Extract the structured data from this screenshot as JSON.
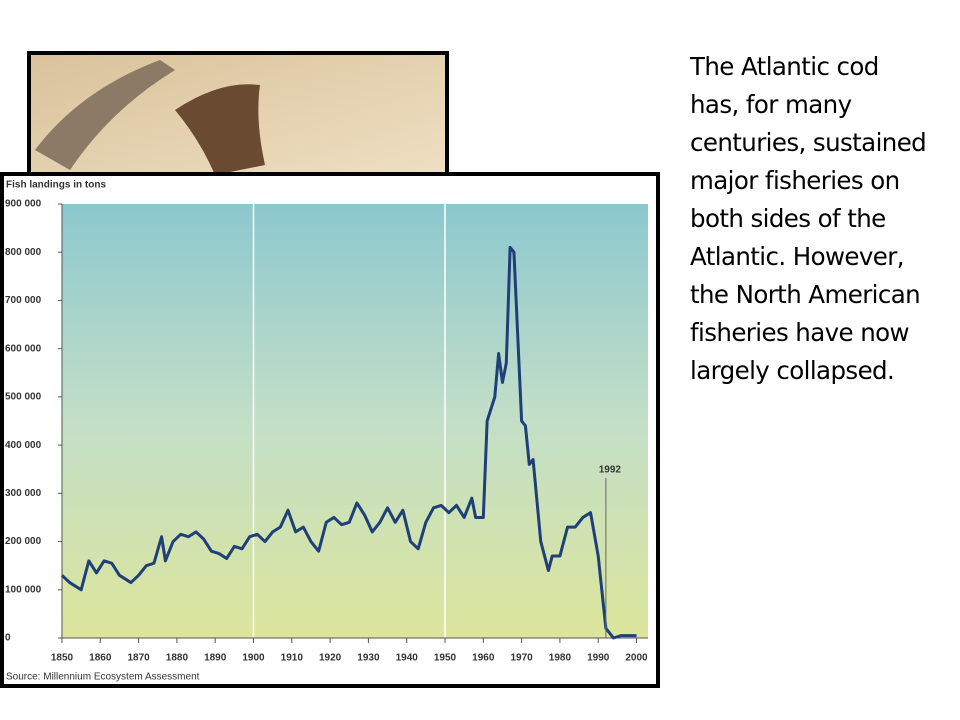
{
  "chart_data": {
    "type": "line",
    "title": "Fish landings in tons",
    "source": "Source: Millennium Ecosystem Assessment",
    "annotation": {
      "x": 1992,
      "label": "1992"
    },
    "x": [
      1850,
      1852,
      1855,
      1857,
      1859,
      1861,
      1863,
      1865,
      1868,
      1870,
      1872,
      1874,
      1876,
      1877,
      1879,
      1881,
      1883,
      1885,
      1887,
      1889,
      1891,
      1893,
      1895,
      1897,
      1899,
      1901,
      1903,
      1905,
      1907,
      1909,
      1911,
      1913,
      1915,
      1917,
      1919,
      1921,
      1923,
      1925,
      1927,
      1929,
      1931,
      1933,
      1935,
      1937,
      1939,
      1941,
      1943,
      1945,
      1947,
      1949,
      1951,
      1953,
      1955,
      1957,
      1958,
      1960,
      1961,
      1963,
      1964,
      1965,
      1966,
      1967,
      1968,
      1970,
      1971,
      1972,
      1973,
      1975,
      1977,
      1978,
      1980,
      1982,
      1984,
      1986,
      1988,
      1990,
      1992,
      1994,
      1996,
      2000
    ],
    "series": [
      {
        "name": "Fish landings",
        "color": "#1f3f78",
        "values": [
          130000,
          115000,
          100000,
          160000,
          135000,
          160000,
          155000,
          130000,
          115000,
          130000,
          150000,
          155000,
          210000,
          160000,
          200000,
          215000,
          210000,
          220000,
          205000,
          180000,
          175000,
          165000,
          190000,
          185000,
          210000,
          215000,
          200000,
          220000,
          230000,
          265000,
          220000,
          230000,
          200000,
          180000,
          240000,
          250000,
          235000,
          240000,
          280000,
          255000,
          220000,
          240000,
          270000,
          240000,
          265000,
          200000,
          185000,
          240000,
          270000,
          275000,
          260000,
          275000,
          250000,
          290000,
          250000,
          250000,
          450000,
          500000,
          590000,
          530000,
          570000,
          810000,
          800000,
          450000,
          440000,
          360000,
          370000,
          200000,
          140000,
          170000,
          170000,
          230000,
          230000,
          250000,
          260000,
          170000,
          20000,
          0,
          5000,
          5000
        ]
      }
    ],
    "xlim": [
      1850,
      2003
    ],
    "xticks": [
      1850,
      1860,
      1870,
      1880,
      1890,
      1900,
      1910,
      1920,
      1930,
      1940,
      1950,
      1960,
      1970,
      1980,
      1990,
      2000
    ],
    "xgrid": [
      1900,
      1950
    ],
    "ylim": [
      0,
      900000
    ],
    "yticks": [
      {
        "value": 0,
        "label": "0"
      },
      {
        "value": 100000,
        "label": "100 000"
      },
      {
        "value": 200000,
        "label": "200 000"
      },
      {
        "value": 300000,
        "label": "300 000"
      },
      {
        "value": 400000,
        "label": "400 000"
      },
      {
        "value": 500000,
        "label": "500 000"
      },
      {
        "value": 600000,
        "label": "600 000"
      },
      {
        "value": 700000,
        "label": "700 000"
      },
      {
        "value": 800000,
        "label": "800 000"
      },
      {
        "value": 900000,
        "label": "900 000"
      }
    ]
  },
  "slide": {
    "body_lines": [
      "The Atlantic cod",
      "has, for many",
      "centuries, sustained",
      "major fisheries on",
      "both sides of the",
      "Atlantic. However,",
      "the North American",
      "fisheries have now",
      "largely collapsed."
    ]
  }
}
